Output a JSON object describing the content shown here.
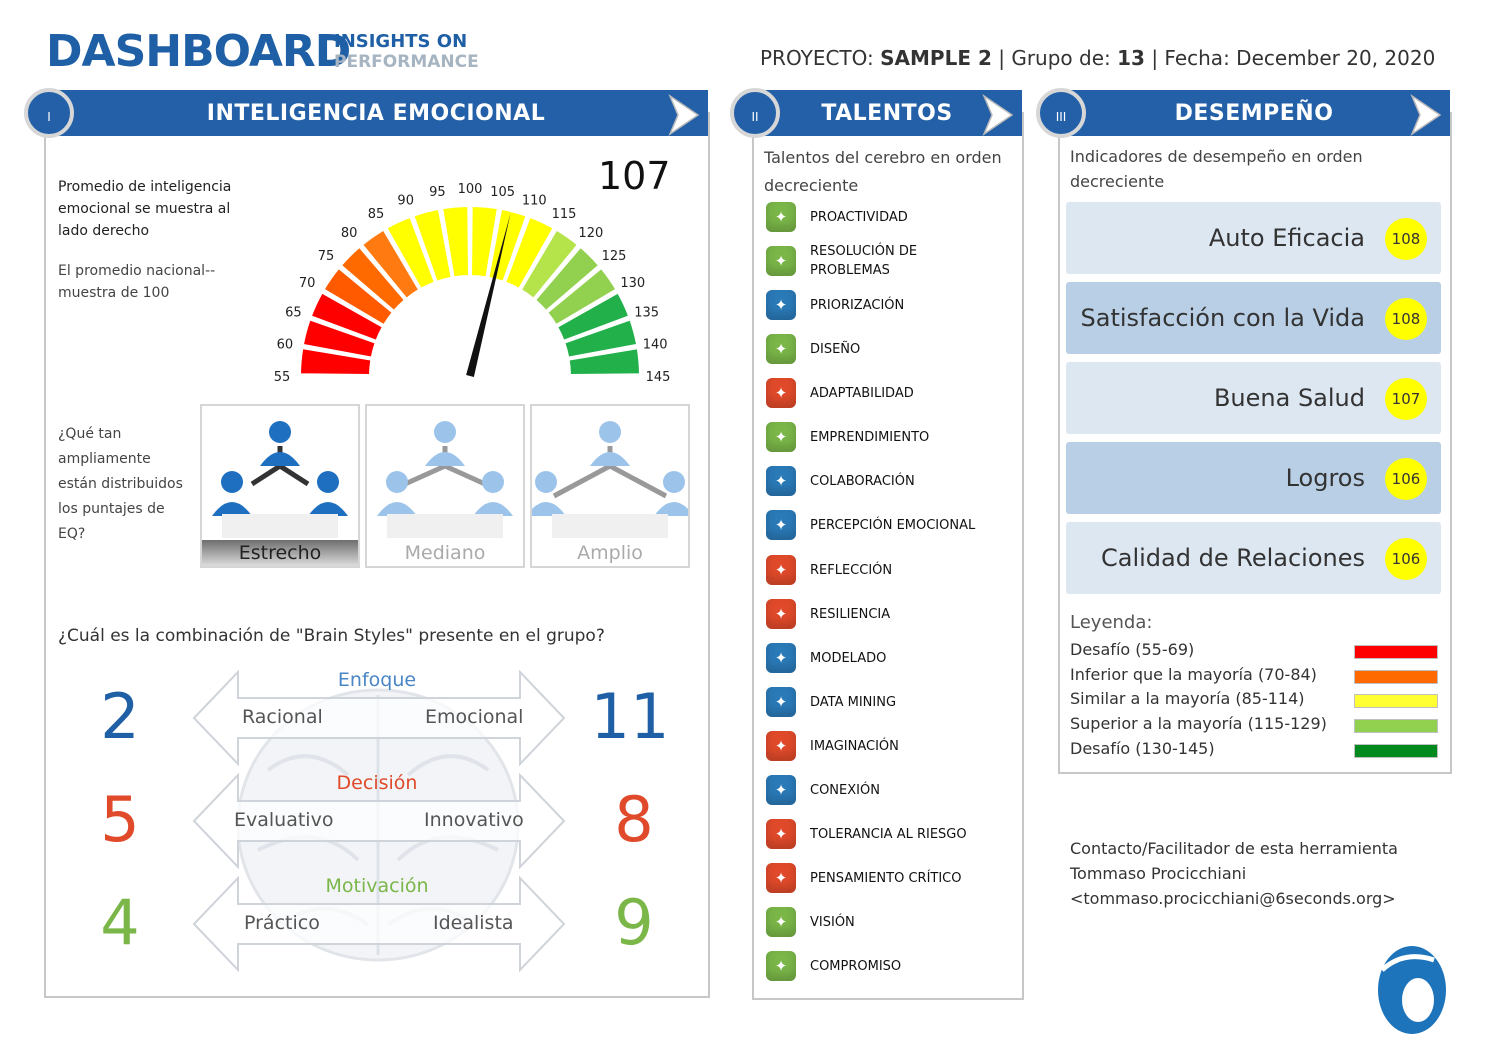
{
  "header": {
    "logo_main": "DASHBOARD",
    "logo_sub1": "INSIGHTS ON",
    "logo_sub2": "PERFORMANCE",
    "project_label": "PROYECTO:",
    "project_value": "SAMPLE 2",
    "group_label": "| Grupo de:",
    "group_value": "13",
    "date_label": "| Fecha:",
    "date_value": "December 20, 2020"
  },
  "panel1": {
    "roman": "I",
    "title": "INTELIGENCIA EMOCIONAL",
    "score": "107",
    "score_value": 107,
    "desc1": "Promedio de inteligencia emocional se muestra al lado derecho",
    "desc2": "El promedio nacional-- muestra de 100",
    "gauge_ticks": [
      "55",
      "60",
      "65",
      "70",
      "75",
      "80",
      "85",
      "90",
      "95",
      "100",
      "105",
      "110",
      "115",
      "120",
      "125",
      "130",
      "135",
      "140",
      "145"
    ],
    "distribution_question": "¿Qué tan ampliamente están distribuidos los puntajes de EQ?",
    "distribution": [
      {
        "label": "Estrecho",
        "selected": true
      },
      {
        "label": "Mediano",
        "selected": false
      },
      {
        "label": "Amplio",
        "selected": false
      }
    ],
    "brain_question": "¿Cuál es la combinación de \"Brain Styles\" presente en el grupo?",
    "brain_styles": [
      {
        "title": "Enfoque",
        "left_label": "Racional",
        "right_label": "Emocional",
        "left_value": "2",
        "right_value": "11",
        "color": "#1f5fa6"
      },
      {
        "title": "Decisión",
        "left_label": "Evaluativo",
        "right_label": "Innovativo",
        "left_value": "5",
        "right_value": "8",
        "color": "#e04a2a"
      },
      {
        "title": "Motivación",
        "left_label": "Práctico",
        "right_label": "Idealista",
        "left_value": "4",
        "right_value": "9",
        "color": "#7ab648"
      }
    ]
  },
  "panel2": {
    "roman": "II",
    "title": "TALENTOS",
    "desc": "Talentos del cerebro en orden decreciente",
    "talents": [
      {
        "label": "PROACTIVIDAD",
        "color": "#7ab648",
        "icon": "sparkle-icon"
      },
      {
        "label": "RESOLUCIÓN DE PROBLEMAS",
        "color": "#7ab648",
        "icon": "trophy-icon"
      },
      {
        "label": "PRIORIZACIÓN",
        "color": "#2a7ab8",
        "icon": "clipboard-icon"
      },
      {
        "label": "DISEÑO",
        "color": "#7ab648",
        "icon": "design-icon"
      },
      {
        "label": "ADAPTABILIDAD",
        "color": "#e04a2a",
        "icon": "swirl-icon"
      },
      {
        "label": "EMPRENDIMIENTO",
        "color": "#7ab648",
        "icon": "blocks-icon"
      },
      {
        "label": "COLABORACIÓN",
        "color": "#2a7ab8",
        "icon": "handshake-icon"
      },
      {
        "label": "PERCEPCIÓN EMOCIONAL",
        "color": "#2a7ab8",
        "icon": "person-heart-icon"
      },
      {
        "label": "REFLECCIÓN",
        "color": "#e04a2a",
        "icon": "reflection-icon"
      },
      {
        "label": "RESILIENCIA",
        "color": "#e04a2a",
        "icon": "arch-icon"
      },
      {
        "label": "MODELADO",
        "color": "#2a7ab8",
        "icon": "model-icon"
      },
      {
        "label": "DATA MINING",
        "color": "#2a7ab8",
        "icon": "brain-icon"
      },
      {
        "label": "IMAGINACIÓN",
        "color": "#e04a2a",
        "icon": "imagination-icon"
      },
      {
        "label": "CONEXIÓN",
        "color": "#2a7ab8",
        "icon": "connection-icon"
      },
      {
        "label": "TOLERANCIA AL RIESGO",
        "color": "#e04a2a",
        "icon": "risk-icon"
      },
      {
        "label": "PENSAMIENTO CRÍTICO",
        "color": "#e04a2a",
        "icon": "scales-icon"
      },
      {
        "label": "VISIÓN",
        "color": "#7ab648",
        "icon": "vision-icon"
      },
      {
        "label": "COMPROMISO",
        "color": "#7ab648",
        "icon": "commitment-icon"
      }
    ]
  },
  "panel3": {
    "roman": "III",
    "title": "DESEMPEÑO",
    "desc": "Indicadores de desempeño en orden decreciente",
    "indicators": [
      {
        "label": "Auto Eficacia",
        "score": "108",
        "bg": "#dde7f2"
      },
      {
        "label": "Satisfacción con la Vida",
        "score": "108",
        "bg": "#b9cfe6"
      },
      {
        "label": "Buena Salud",
        "score": "107",
        "bg": "#dde7f2"
      },
      {
        "label": "Logros",
        "score": "106",
        "bg": "#b9cfe6"
      },
      {
        "label": "Calidad de Relaciones",
        "score": "106",
        "bg": "#dde7f2"
      }
    ],
    "legend_title": "Leyenda:",
    "legend": [
      {
        "label": "Desafío (55-69)",
        "color": "#ff0000"
      },
      {
        "label": "Inferior que la mayoría (70-84)",
        "color": "#ff6a00"
      },
      {
        "label": "Similar a la mayoría (85-114)",
        "color": "#ffff33"
      },
      {
        "label": "Superior a la mayoría (115-129)",
        "color": "#92d050"
      },
      {
        "label": "Desafío (130-145)",
        "color": "#008a1e"
      }
    ]
  },
  "contact": {
    "line1": "Contacto/Facilitador de esta herramienta",
    "line2": "Tommaso Procicchiani",
    "line3": "<tommaso.procicchiani@6seconds.org>"
  }
}
